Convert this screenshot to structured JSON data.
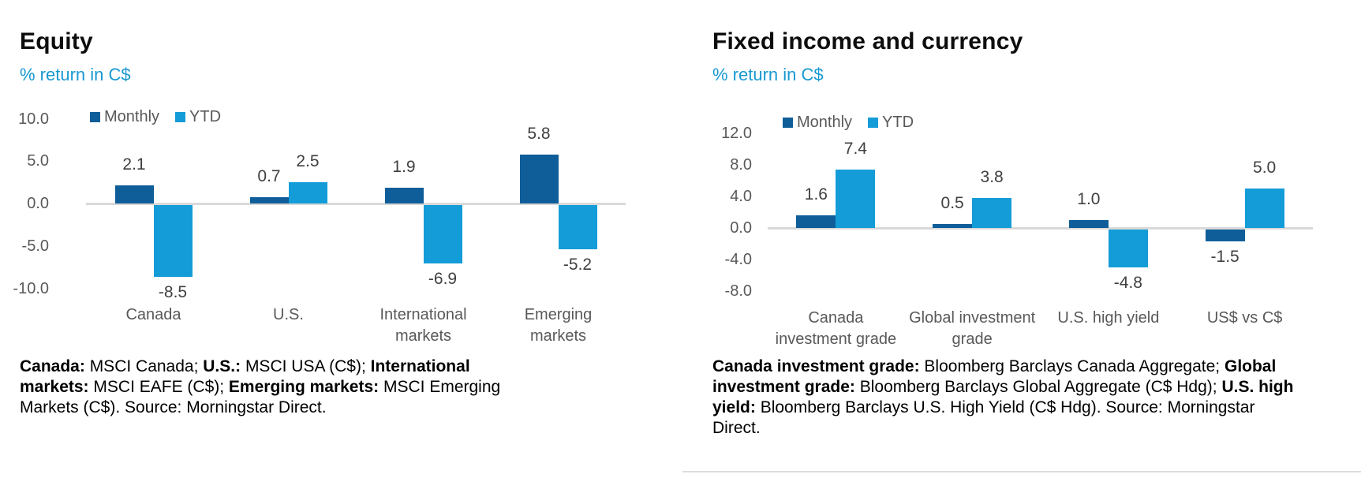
{
  "colors": {
    "monthly_series": "#0F5E99",
    "ytd_series": "#149CD8",
    "subtitle_text": "#1899D1",
    "zero_axis": "#D9D9D9",
    "tick_text": "#595959",
    "value_label_text": "#404040",
    "title_text": "#0D0D0D"
  },
  "chart_data": [
    {
      "type": "bar",
      "title": "Equity",
      "subtitle": "% return in C$",
      "categories": [
        "Canada",
        "U.S.",
        "International markets",
        "Emerging markets"
      ],
      "category_lines": [
        [
          "Canada"
        ],
        [
          "U.S."
        ],
        [
          "International",
          "markets"
        ],
        [
          "Emerging",
          "markets"
        ]
      ],
      "series": [
        {
          "name": "Monthly",
          "color": "#0F5E99",
          "values": [
            2.1,
            0.7,
            1.9,
            5.8
          ]
        },
        {
          "name": "YTD",
          "color": "#149CD8",
          "values": [
            -8.5,
            2.5,
            -6.9,
            -5.2
          ]
        }
      ],
      "ylabel": "% return in C$",
      "ylim": [
        -10,
        10
      ],
      "yticks": [
        10.0,
        5.0,
        0.0,
        -5.0,
        -10.0
      ],
      "ytick_labels": [
        "10.0",
        "5.0",
        "0.0",
        "-5.0",
        "-10.0"
      ],
      "grid": false,
      "legend_position": "top-left",
      "value_labels": [
        "2.1",
        "-8.5",
        "0.7",
        "2.5",
        "1.9",
        "-6.9",
        "5.8",
        "-5.2"
      ],
      "footnote_text": "Canada: MSCI Canada; U.S.: MSCI USA (C$); International markets: MSCI EAFE (C$); Emerging markets: MSCI Emerging Markets (C$). Source: Morningstar Direct.",
      "footnote_runs": [
        {
          "text": "Canada:",
          "bold": true
        },
        {
          "text": " MSCI Canada; ",
          "bold": false
        },
        {
          "text": "U.S.:",
          "bold": true
        },
        {
          "text": " MSCI USA (C$); ",
          "bold": false
        },
        {
          "text": "International markets:",
          "bold": true
        },
        {
          "text": " MSCI EAFE (C$); ",
          "bold": false
        },
        {
          "text": "Emerging markets:",
          "bold": true
        },
        {
          "text": " MSCI Emerging Markets (C$). Source: Morningstar Direct.",
          "bold": false
        }
      ]
    },
    {
      "type": "bar",
      "title": "Fixed income and currency",
      "subtitle": "% return in C$",
      "categories": [
        "Canada investment grade",
        "Global investment grade",
        "U.S. high yield",
        "US$ vs C$"
      ],
      "category_lines": [
        [
          "Canada",
          "investment grade"
        ],
        [
          "Global investment",
          "grade"
        ],
        [
          "U.S. high yield"
        ],
        [
          "US$ vs C$"
        ]
      ],
      "series": [
        {
          "name": "Monthly",
          "color": "#0F5E99",
          "values": [
            1.6,
            0.5,
            1.0,
            -1.5
          ]
        },
        {
          "name": "YTD",
          "color": "#149CD8",
          "values": [
            7.4,
            3.8,
            -4.8,
            5.0
          ]
        }
      ],
      "ylabel": "% return in C$",
      "ylim": [
        -8,
        12
      ],
      "yticks": [
        12.0,
        8.0,
        4.0,
        0.0,
        -4.0,
        -8.0
      ],
      "ytick_labels": [
        "12.0",
        "8.0",
        "4.0",
        "0.0",
        "-4.0",
        "-8.0"
      ],
      "grid": false,
      "legend_position": "top-left",
      "value_labels": [
        "1.6",
        "7.4",
        "0.5",
        "3.8",
        "1.0",
        "-4.8",
        "-1.5",
        "5.0"
      ],
      "footnote_text": "Canada investment grade: Bloomberg Barclays Canada Aggregate; Global investment grade: Bloomberg Barclays Global Aggregate (C$ Hdg); U.S. high yield: Bloomberg Barclays U.S. High Yield (C$ Hdg). Source: Morningstar Direct.",
      "footnote_runs": [
        {
          "text": "Canada investment grade:",
          "bold": true
        },
        {
          "text": " Bloomberg Barclays Canada Aggregate; ",
          "bold": false
        },
        {
          "text": "Global investment grade:",
          "bold": true
        },
        {
          "text": " Bloomberg Barclays Global Aggregate (C$ Hdg); ",
          "bold": false
        },
        {
          "text": "U.S. high yield:",
          "bold": true
        },
        {
          "text": " Bloomberg Barclays U.S. High Yield (C$ Hdg). Source: Morningstar Direct.",
          "bold": false
        }
      ]
    }
  ]
}
